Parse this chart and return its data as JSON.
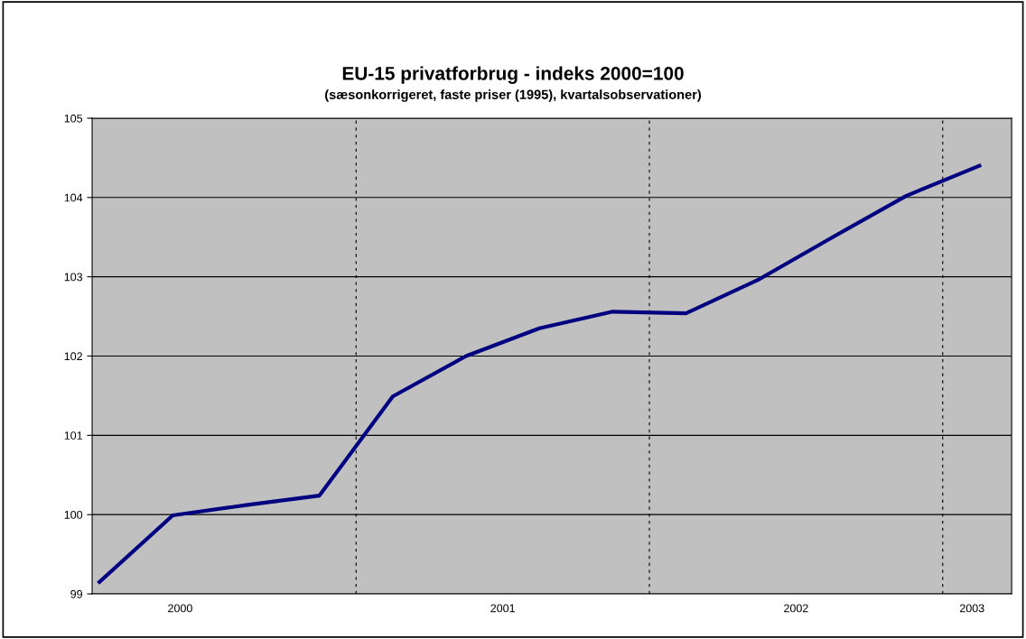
{
  "chart_data": {
    "type": "line",
    "title": "EU-15 privatforbrug - indeks 2000=100",
    "subtitle": "(sæsonkorrigeret, faste priser (1995), kvartalsobservationer)",
    "x": [
      2000.0,
      2000.25,
      2000.5,
      2000.75,
      2001.0,
      2001.25,
      2001.5,
      2001.75,
      2002.0,
      2002.25,
      2002.5,
      2002.75,
      2003.0
    ],
    "series": [
      {
        "color": "#000080",
        "values": [
          99.15,
          99.99,
          100.12,
          100.24,
          101.49,
          102.0,
          102.35,
          102.56,
          102.54,
          102.97,
          103.5,
          104.02,
          104.4
        ]
      }
    ],
    "xlim": [
      1999.975,
      2003.11
    ],
    "xticks": [
      {
        "value": 2000.275,
        "label": "2000"
      },
      {
        "value": 2001.375,
        "label": "2001"
      },
      {
        "value": 2002.375,
        "label": "2002"
      },
      {
        "value": 2002.975,
        "label": "2003"
      }
    ],
    "ylim": [
      99,
      105
    ],
    "yticks": [
      99,
      100,
      101,
      102,
      103,
      104,
      105
    ],
    "ref_lines": [
      {
        "axis": "x",
        "value": 2000.875,
        "color": "#000000",
        "line_style": "dashed"
      },
      {
        "axis": "x",
        "value": 2001.875,
        "color": "#000000",
        "line_style": "dashed"
      },
      {
        "axis": "x",
        "value": 2002.875,
        "color": "#000000",
        "line_style": "dashed"
      }
    ],
    "grid": "y",
    "legend": false,
    "marker": "none",
    "line_style": "solid"
  }
}
